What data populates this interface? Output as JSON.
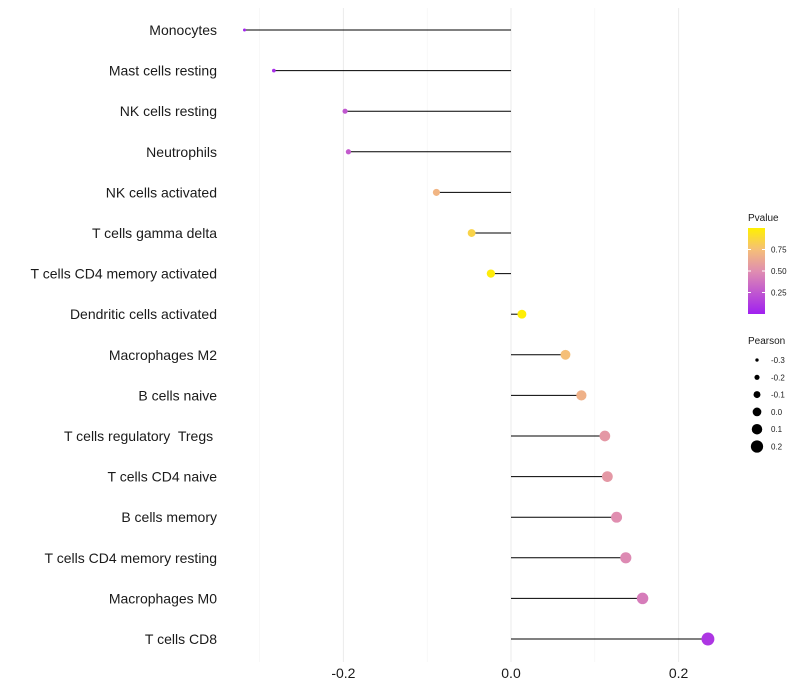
{
  "chart_data": {
    "type": "lollipop",
    "categories": [
      "Monocytes",
      "Mast cells resting",
      "NK cells resting",
      "Neutrophils",
      "NK cells activated",
      "T cells gamma delta",
      "T cells CD4 memory activated",
      "Dendritic cells activated",
      "Macrophages M2",
      "B cells naive",
      "T cells regulatory  Tregs ",
      "T cells CD4 naive",
      "B cells memory",
      "T cells CD4 memory resting",
      "Macrophages M0",
      "T cells CD8"
    ],
    "pearson": [
      -0.318,
      -0.283,
      -0.198,
      -0.194,
      -0.089,
      -0.047,
      -0.024,
      0.013,
      0.065,
      0.084,
      0.112,
      0.115,
      0.126,
      0.137,
      0.157,
      0.235
    ],
    "pvalue": [
      0.02,
      0.06,
      0.25,
      0.27,
      0.7,
      0.85,
      0.98,
      0.99,
      0.75,
      0.68,
      0.55,
      0.55,
      0.5,
      0.48,
      0.42,
      0.1
    ],
    "xlim": [
      -0.32,
      0.25
    ],
    "x_ticks": [
      -0.2,
      0.0,
      0.2
    ],
    "x_tick_labels": [
      "-0.2",
      "0.0",
      "0.2"
    ],
    "grid": true,
    "legend_color": {
      "title": "Pvalue",
      "ticks": [
        0.25,
        0.5,
        0.75
      ],
      "tick_labels": [
        "0.25",
        "0.50",
        "0.75"
      ],
      "range": [
        0.0,
        1.0
      ],
      "colors": [
        "#a020f0",
        "#fff000"
      ]
    },
    "legend_size": {
      "title": "Pearson",
      "values": [
        -0.3,
        -0.2,
        -0.1,
        0.0,
        0.1,
        0.2
      ],
      "labels": [
        "-0.3",
        "-0.2",
        "-0.1",
        "0.0",
        "0.1",
        "0.2"
      ]
    }
  }
}
